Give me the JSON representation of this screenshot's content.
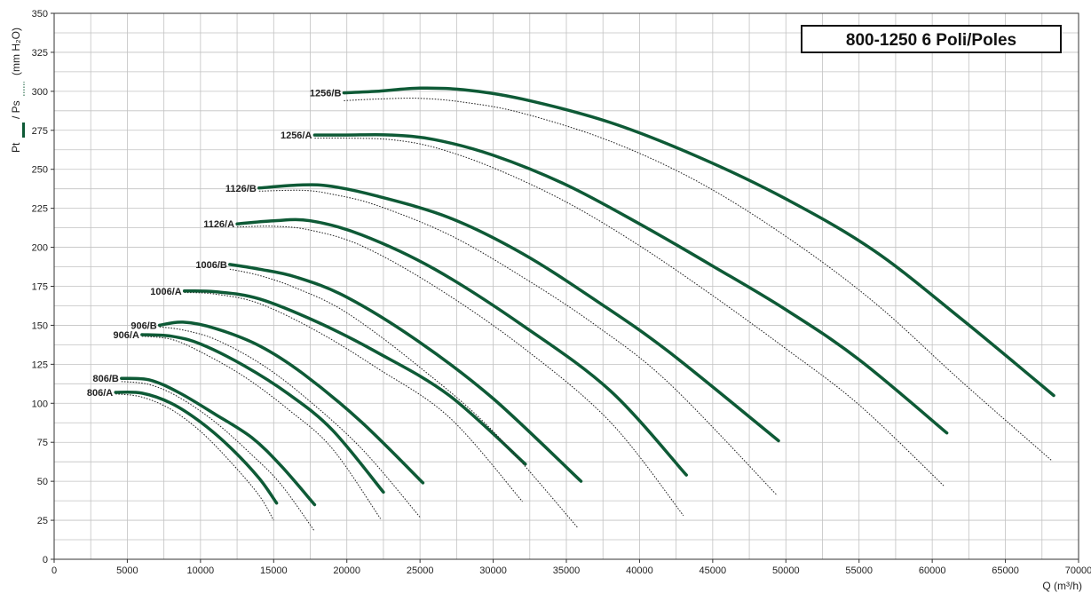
{
  "chart_data": {
    "type": "line",
    "title": "800-1250 6 Poli/Poles",
    "xlabel": "Q (m³/h)",
    "ylabel": {
      "prefix": "Pt",
      "middle": "/ Ps",
      "unit": "(mm H₂O)"
    },
    "xlim": [
      0,
      70000
    ],
    "ylim": [
      0,
      350
    ],
    "x_ticks": [
      0,
      5000,
      10000,
      15000,
      20000,
      25000,
      30000,
      35000,
      40000,
      45000,
      50000,
      55000,
      60000,
      65000,
      70000
    ],
    "y_ticks": [
      0,
      25,
      50,
      75,
      100,
      125,
      150,
      175,
      200,
      225,
      250,
      275,
      300,
      325,
      350
    ],
    "grid": true,
    "colors": {
      "pt_line": "#0e5a36",
      "ps_line": "#222222",
      "grid": "#c2c2c2",
      "frame": "#333333"
    },
    "series": [
      {
        "name": "806/A",
        "pt": [
          [
            4200,
            107
          ],
          [
            6000,
            106.5
          ],
          [
            8000,
            100
          ],
          [
            10000,
            88
          ],
          [
            12000,
            72
          ],
          [
            14000,
            52
          ],
          [
            15200,
            36
          ]
        ],
        "ps": [
          [
            4200,
            106
          ],
          [
            6000,
            104
          ],
          [
            8000,
            96
          ],
          [
            10000,
            82
          ],
          [
            12000,
            63
          ],
          [
            14000,
            41
          ],
          [
            15000,
            25
          ]
        ]
      },
      {
        "name": "806/B",
        "pt": [
          [
            4600,
            116
          ],
          [
            6500,
            115
          ],
          [
            8500,
            107
          ],
          [
            11000,
            93
          ],
          [
            13500,
            78
          ],
          [
            15500,
            60
          ],
          [
            17800,
            35
          ]
        ],
        "ps": [
          [
            4600,
            114
          ],
          [
            6500,
            112
          ],
          [
            8500,
            104
          ],
          [
            11000,
            88
          ],
          [
            13500,
            67
          ],
          [
            15500,
            48
          ],
          [
            17800,
            18
          ]
        ]
      },
      {
        "name": "906/A",
        "pt": [
          [
            6000,
            144
          ],
          [
            8000,
            143
          ],
          [
            10000,
            138
          ],
          [
            13000,
            124
          ],
          [
            16000,
            106
          ],
          [
            19000,
            83
          ],
          [
            22500,
            43
          ]
        ],
        "ps": [
          [
            6000,
            143
          ],
          [
            8000,
            141
          ],
          [
            10000,
            133
          ],
          [
            13000,
            117
          ],
          [
            16000,
            96
          ],
          [
            19000,
            71
          ],
          [
            22300,
            26
          ]
        ]
      },
      {
        "name": "906/B",
        "pt": [
          [
            7200,
            150
          ],
          [
            8800,
            152
          ],
          [
            11000,
            148
          ],
          [
            14000,
            137
          ],
          [
            17000,
            119
          ],
          [
            21000,
            88
          ],
          [
            25200,
            49
          ]
        ],
        "ps": [
          [
            7200,
            149
          ],
          [
            8800,
            147
          ],
          [
            11000,
            141
          ],
          [
            14000,
            126
          ],
          [
            17000,
            105
          ],
          [
            21000,
            71
          ],
          [
            25000,
            27
          ]
        ]
      },
      {
        "name": "1006/A",
        "pt": [
          [
            8900,
            172
          ],
          [
            11000,
            171.5
          ],
          [
            14000,
            167
          ],
          [
            18000,
            152
          ],
          [
            22000,
            133
          ],
          [
            27000,
            105
          ],
          [
            32200,
            61
          ]
        ],
        "ps": [
          [
            8900,
            171
          ],
          [
            11000,
            170
          ],
          [
            14000,
            164
          ],
          [
            18000,
            146
          ],
          [
            22000,
            123
          ],
          [
            27000,
            91
          ],
          [
            32000,
            37
          ]
        ]
      },
      {
        "name": "1006/B",
        "pt": [
          [
            12000,
            189
          ],
          [
            14000,
            186
          ],
          [
            16500,
            181
          ],
          [
            20000,
            168
          ],
          [
            25000,
            139
          ],
          [
            30000,
            103
          ],
          [
            36000,
            50
          ]
        ],
        "ps": [
          [
            12000,
            186
          ],
          [
            14000,
            182
          ],
          [
            16500,
            174
          ],
          [
            20000,
            158
          ],
          [
            25000,
            123
          ],
          [
            30000,
            82
          ],
          [
            35800,
            20
          ]
        ]
      },
      {
        "name": "1126/A",
        "pt": [
          [
            12500,
            215
          ],
          [
            15000,
            217
          ],
          [
            17500,
            217
          ],
          [
            21000,
            208
          ],
          [
            26000,
            186
          ],
          [
            32000,
            150
          ],
          [
            38000,
            108
          ],
          [
            43200,
            54
          ]
        ],
        "ps": [
          [
            12500,
            213
          ],
          [
            15000,
            213.5
          ],
          [
            17500,
            211
          ],
          [
            21000,
            201
          ],
          [
            26000,
            175
          ],
          [
            32000,
            136
          ],
          [
            38000,
            88
          ],
          [
            43000,
            28
          ]
        ]
      },
      {
        "name": "1126/B",
        "pt": [
          [
            14000,
            238
          ],
          [
            17000,
            240
          ],
          [
            19000,
            239
          ],
          [
            22000,
            233
          ],
          [
            27000,
            219
          ],
          [
            32000,
            196
          ],
          [
            37000,
            166
          ],
          [
            42000,
            133
          ],
          [
            49500,
            76
          ]
        ],
        "ps": [
          [
            14000,
            236
          ],
          [
            17000,
            236.5
          ],
          [
            19000,
            234
          ],
          [
            22000,
            227
          ],
          [
            27000,
            208
          ],
          [
            32000,
            181
          ],
          [
            37000,
            150
          ],
          [
            42000,
            113
          ],
          [
            49400,
            41
          ]
        ]
      },
      {
        "name": "1256/A",
        "pt": [
          [
            17800,
            272
          ],
          [
            20000,
            272
          ],
          [
            23000,
            272
          ],
          [
            26000,
            269
          ],
          [
            30000,
            259
          ],
          [
            35000,
            240
          ],
          [
            40000,
            215
          ],
          [
            45000,
            188
          ],
          [
            50000,
            160
          ],
          [
            55000,
            128
          ],
          [
            61000,
            81
          ]
        ],
        "ps": [
          [
            17800,
            270
          ],
          [
            20000,
            270
          ],
          [
            23000,
            269
          ],
          [
            26000,
            264
          ],
          [
            30000,
            251
          ],
          [
            35000,
            229
          ],
          [
            40000,
            201
          ],
          [
            45000,
            169
          ],
          [
            50000,
            135
          ],
          [
            55000,
            99
          ],
          [
            60800,
            47
          ]
        ]
      },
      {
        "name": "1256/B",
        "pt": [
          [
            19800,
            299
          ],
          [
            22000,
            300
          ],
          [
            25000,
            302
          ],
          [
            28000,
            301
          ],
          [
            32000,
            295
          ],
          [
            38000,
            280
          ],
          [
            44000,
            258
          ],
          [
            50000,
            231
          ],
          [
            56000,
            198
          ],
          [
            62000,
            154
          ],
          [
            68300,
            105
          ]
        ],
        "ps": [
          [
            19800,
            294
          ],
          [
            22000,
            295
          ],
          [
            25000,
            295.5
          ],
          [
            28000,
            293
          ],
          [
            32000,
            286
          ],
          [
            38000,
            268
          ],
          [
            44000,
            242
          ],
          [
            50000,
            207
          ],
          [
            56000,
            165
          ],
          [
            62000,
            114
          ],
          [
            68200,
            63
          ]
        ]
      }
    ]
  }
}
